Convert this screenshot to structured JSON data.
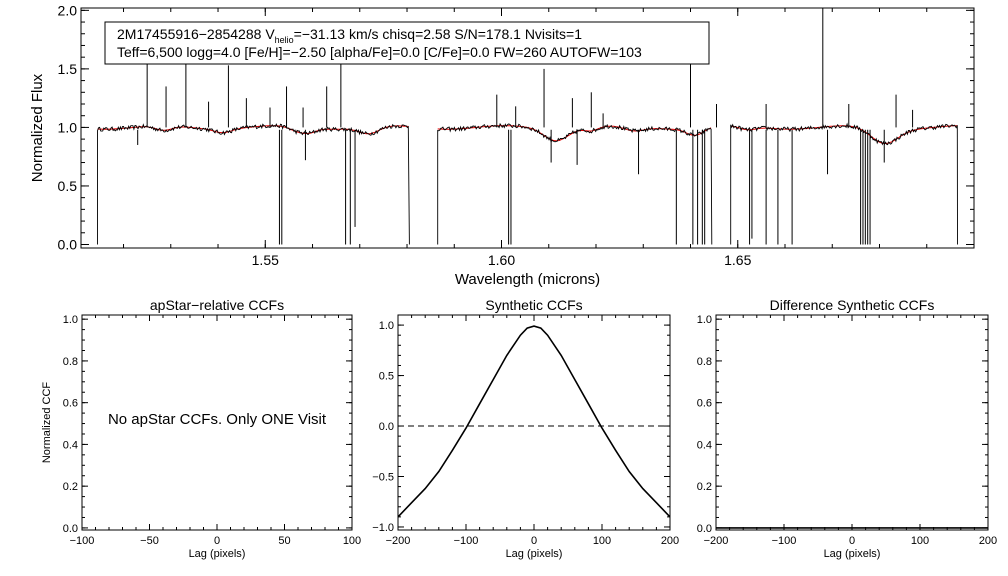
{
  "chart_data": [
    {
      "type": "line",
      "id": "spectrum",
      "xlabel": "Wavelength (microns)",
      "ylabel": "Normalized Flux",
      "xlim": [
        1.511,
        1.7
      ],
      "ylim": [
        -0.03,
        2.02
      ],
      "xticks": [
        1.55,
        1.6,
        1.65
      ],
      "xtick_labels": [
        "1.55",
        "1.60",
        "1.65"
      ],
      "yticks": [
        0.0,
        0.5,
        1.0,
        1.5,
        2.0
      ],
      "ytick_labels": [
        "0.0",
        "0.5",
        "1.0",
        "1.5",
        "2.0"
      ],
      "info": {
        "star": "2M17455916−2854288",
        "vhelio_prefix": "V",
        "vhelio_sub": "helio",
        "vhelio_rest": "=−31.13 km/s  chisq=2.58  S/N=178.1  Nvisits=1",
        "line2": "Teff=6,500 logg=4.0 [Fe/H]=−2.50 [alpha/Fe]=0.0 [C/Fe]=0.0 FW=260 AUTOFW=103"
      },
      "chips": [
        [
          1.5145,
          1.5805
        ],
        [
          1.5865,
          1.6445
        ],
        [
          1.6485,
          1.6965
        ]
      ],
      "absorption_features": [
        {
          "x": 1.5285,
          "depth": 0.04,
          "width": 0.0025
        },
        {
          "x": 1.541,
          "depth": 0.03,
          "width": 0.0025
        },
        {
          "x": 1.557,
          "depth": 0.04,
          "width": 0.0025
        },
        {
          "x": 1.5595,
          "depth": 0.03,
          "width": 0.002
        },
        {
          "x": 1.572,
          "depth": 0.06,
          "width": 0.003
        },
        {
          "x": 1.6115,
          "depth": 0.1,
          "width": 0.0035
        },
        {
          "x": 1.619,
          "depth": 0.03,
          "width": 0.002
        },
        {
          "x": 1.628,
          "depth": 0.04,
          "width": 0.003
        },
        {
          "x": 1.641,
          "depth": 0.06,
          "width": 0.0025
        },
        {
          "x": 1.652,
          "depth": 0.03,
          "width": 0.0025
        },
        {
          "x": 1.681,
          "depth": 0.13,
          "width": 0.004
        }
      ],
      "spikes_up": [
        {
          "x": 1.525,
          "y": 1.86
        },
        {
          "x": 1.529,
          "y": 1.35
        },
        {
          "x": 1.5332,
          "y": 1.6
        },
        {
          "x": 1.538,
          "y": 1.22
        },
        {
          "x": 1.5422,
          "y": 1.53
        },
        {
          "x": 1.546,
          "y": 1.25
        },
        {
          "x": 1.551,
          "y": 1.17
        },
        {
          "x": 1.5545,
          "y": 1.35
        },
        {
          "x": 1.558,
          "y": 1.17
        },
        {
          "x": 1.563,
          "y": 1.35
        },
        {
          "x": 1.566,
          "y": 1.88
        },
        {
          "x": 1.599,
          "y": 1.28
        },
        {
          "x": 1.603,
          "y": 1.18
        },
        {
          "x": 1.609,
          "y": 1.5
        },
        {
          "x": 1.615,
          "y": 1.25
        },
        {
          "x": 1.619,
          "y": 1.3
        },
        {
          "x": 1.6215,
          "y": 1.12
        },
        {
          "x": 1.64,
          "y": 1.55
        },
        {
          "x": 1.6455,
          "y": 1.2
        },
        {
          "x": 1.656,
          "y": 1.2
        },
        {
          "x": 1.668,
          "y": 2.02
        },
        {
          "x": 1.6735,
          "y": 1.2
        },
        {
          "x": 1.6835,
          "y": 1.28
        },
        {
          "x": 1.687,
          "y": 1.15
        }
      ],
      "spikes_down": [
        {
          "x": 1.523,
          "y": 0.85
        },
        {
          "x": 1.553,
          "y": 0.0
        },
        {
          "x": 1.5535,
          "y": 0.0
        },
        {
          "x": 1.5585,
          "y": 0.72
        },
        {
          "x": 1.567,
          "y": 0.0
        },
        {
          "x": 1.568,
          "y": 0.0
        },
        {
          "x": 1.569,
          "y": 0.15
        },
        {
          "x": 1.6015,
          "y": 0.0
        },
        {
          "x": 1.602,
          "y": 0.0
        },
        {
          "x": 1.6105,
          "y": 0.7
        },
        {
          "x": 1.616,
          "y": 0.68
        },
        {
          "x": 1.629,
          "y": 0.6
        },
        {
          "x": 1.637,
          "y": 0.0
        },
        {
          "x": 1.6405,
          "y": 0.0
        },
        {
          "x": 1.6415,
          "y": 0.0
        },
        {
          "x": 1.6425,
          "y": 0.0
        },
        {
          "x": 1.643,
          "y": 0.0
        },
        {
          "x": 1.6525,
          "y": 0.0
        },
        {
          "x": 1.653,
          "y": 0.05
        },
        {
          "x": 1.656,
          "y": 0.0
        },
        {
          "x": 1.6585,
          "y": 0.0
        },
        {
          "x": 1.6615,
          "y": 0.0
        },
        {
          "x": 1.669,
          "y": 0.6
        },
        {
          "x": 1.676,
          "y": 0.0
        },
        {
          "x": 1.6765,
          "y": 0.0
        },
        {
          "x": 1.677,
          "y": 0.0
        },
        {
          "x": 1.6775,
          "y": 0.0
        },
        {
          "x": 1.678,
          "y": 0.0
        },
        {
          "x": 1.681,
          "y": 0.7
        }
      ]
    },
    {
      "type": "line",
      "id": "apstar-ccf",
      "title": "apStar−relative CCFs",
      "xlabel": "Lag (pixels)",
      "ylabel": "Normalized CCF",
      "xlim": [
        -100,
        100
      ],
      "ylim": [
        -0.01,
        1.02
      ],
      "xticks": [
        -100,
        -50,
        0,
        50,
        100
      ],
      "xtick_labels": [
        "−100",
        "−50",
        "0",
        "50",
        "100"
      ],
      "yticks": [
        0.0,
        0.2,
        0.4,
        0.6,
        0.8,
        1.0
      ],
      "ytick_labels": [
        "0.0",
        "0.2",
        "0.4",
        "0.6",
        "0.8",
        "1.0"
      ],
      "annotation": "No apStar CCFs.  Only ONE Visit"
    },
    {
      "type": "line",
      "id": "synthetic-ccf",
      "title": "Synthetic CCFs",
      "xlabel": "Lag (pixels)",
      "ylabel": "",
      "xlim": [
        -200,
        200
      ],
      "ylim": [
        -1.03,
        1.1
      ],
      "xticks": [
        -200,
        -100,
        0,
        100,
        200
      ],
      "xtick_labels": [
        "−200",
        "−100",
        "0",
        "100",
        "200"
      ],
      "yticks": [
        -1.0,
        -0.5,
        0.0,
        0.5,
        1.0
      ],
      "ytick_labels": [
        "−1.0",
        "−0.5",
        "0.0",
        "0.5",
        "1.0"
      ],
      "zero_line": 0.0,
      "x": [
        -200,
        -180,
        -160,
        -140,
        -120,
        -100,
        -80,
        -60,
        -40,
        -20,
        -10,
        0,
        10,
        20,
        40,
        60,
        80,
        100,
        120,
        140,
        160,
        180,
        200
      ],
      "y": [
        -0.9,
        -0.76,
        -0.62,
        -0.45,
        -0.24,
        -0.02,
        0.22,
        0.46,
        0.7,
        0.9,
        0.97,
        0.99,
        0.97,
        0.9,
        0.7,
        0.46,
        0.22,
        -0.02,
        -0.24,
        -0.45,
        -0.62,
        -0.76,
        -0.9
      ]
    },
    {
      "type": "line",
      "id": "difference-ccf",
      "title": "Difference Synthetic CCFs",
      "xlabel": "Lag (pixels)",
      "ylabel": "",
      "xlim": [
        -200,
        200
      ],
      "ylim": [
        -0.01,
        1.02
      ],
      "xticks": [
        -200,
        -100,
        0,
        100,
        200
      ],
      "xtick_labels": [
        "−200",
        "−100",
        "0",
        "100",
        "200"
      ],
      "yticks": [
        0.0,
        0.2,
        0.4,
        0.6,
        0.8,
        1.0
      ],
      "ytick_labels": [
        "0.0",
        "0.2",
        "0.4",
        "0.6",
        "0.8",
        "1.0"
      ],
      "x": [
        -200,
        200
      ],
      "y": [
        0.0,
        0.0
      ]
    }
  ],
  "colors": {
    "observed": "#000000",
    "model": "#e00000",
    "axes": "#000000"
  }
}
